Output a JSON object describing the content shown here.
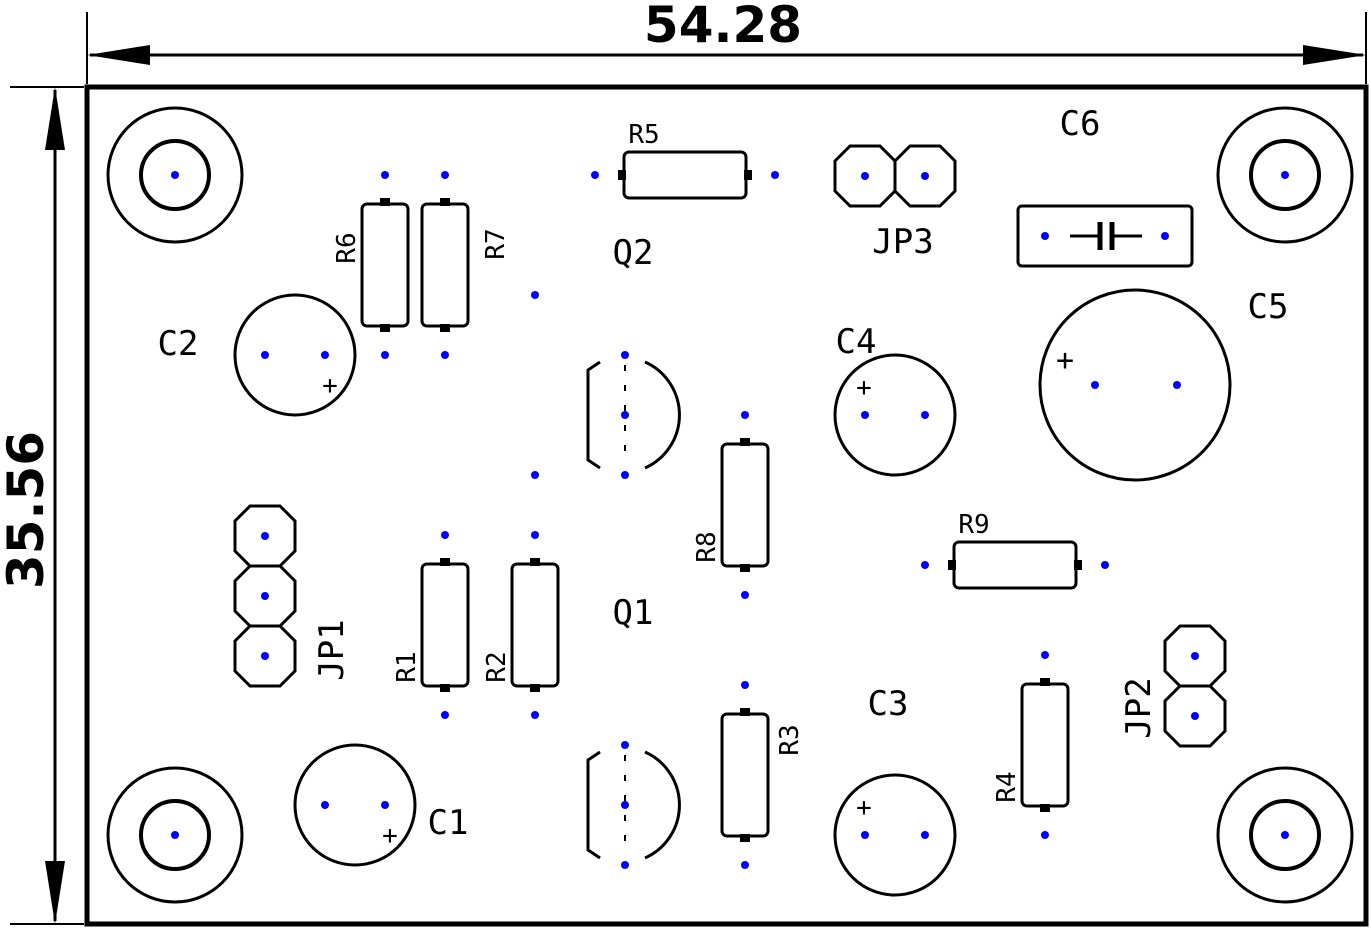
{
  "dimensions": {
    "width_label": "54.28",
    "height_label": "35.56"
  },
  "components": {
    "R1": "R1",
    "R2": "R2",
    "R3": "R3",
    "R4": "R4",
    "R5": "R5",
    "R6": "R6",
    "R7": "R7",
    "R8": "R8",
    "R9": "R9",
    "C1": "C1",
    "C2": "C2",
    "C3": "C3",
    "C4": "C4",
    "C5": "C5",
    "C6": "C6",
    "Q1": "Q1",
    "Q2": "Q2",
    "JP1": "JP1",
    "JP2": "JP2",
    "JP3": "JP3"
  },
  "polarity_mark": "+",
  "colors": {
    "pad": "#0000ff",
    "outline": "#000000",
    "background": "#ffffff"
  }
}
